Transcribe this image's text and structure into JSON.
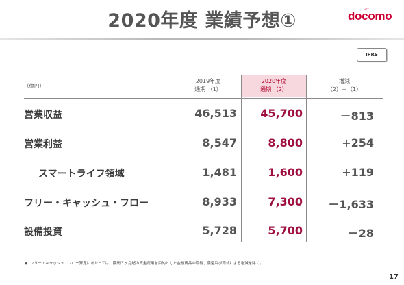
{
  "header": {
    "title": "2020年度 業績予想①",
    "logo_small": "NTT",
    "logo": "docomo"
  },
  "badge": "IFRS",
  "table": {
    "unit": "（億円）",
    "columns": [
      {
        "line1": "2019年度",
        "line2": "通期 （1）"
      },
      {
        "line1": "2020年度",
        "line2": "通期 （2）"
      },
      {
        "line1": "増減",
        "line2": "（2）－（1）"
      }
    ],
    "rows": [
      {
        "label": "営業収益",
        "v2019": "46,513",
        "v2020": "45,700",
        "diff": "－813"
      },
      {
        "label": "営業利益",
        "v2019": "8,547",
        "v2020": "8,800",
        "diff": "+254"
      },
      {
        "label": "スマートライフ領域",
        "v2019": "1,481",
        "v2020": "1,600",
        "diff": "+119"
      },
      {
        "label": "フリー・キャッシュ・フロー",
        "v2019": "8,933",
        "v2020": "7,300",
        "diff": "－1,633"
      },
      {
        "label": "設備投資",
        "v2019": "5,728",
        "v2020": "5,700",
        "diff": "－28"
      }
    ]
  },
  "footnote": {
    "bullet": "◆",
    "text": "フリー・キャッシュ・フロー算定にあたっては、期間３ヶ月超の資金運用を目的とした金融商品の取得、償還及び売却による増減を除く。"
  },
  "page_number": "17"
}
